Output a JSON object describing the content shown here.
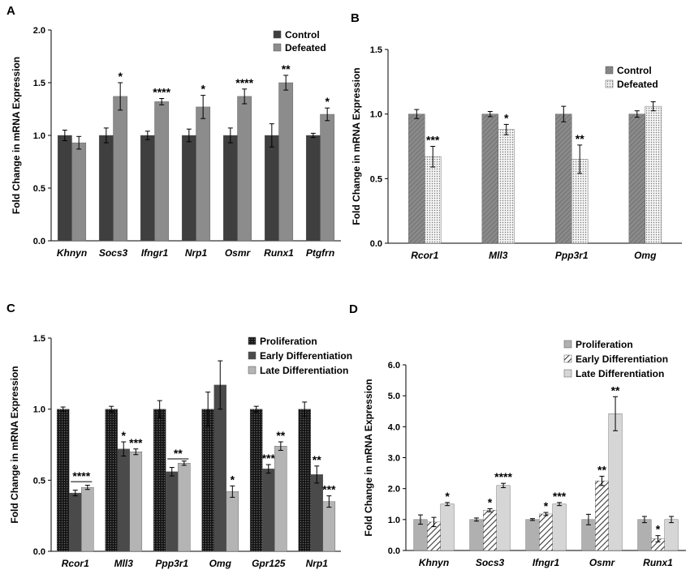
{
  "chart_data": [
    {
      "panel": "A",
      "type": "bar",
      "ylabel": "Fold Change in mRNA Expression",
      "ylim": [
        0,
        2.0
      ],
      "yticks": [
        "0.0",
        "0.5",
        "1.0",
        "1.5",
        "2.0"
      ],
      "yticks_values": [
        0,
        0.5,
        1.0,
        1.5,
        2.0
      ],
      "legend_position": "top-right",
      "categories": [
        "Khnyn",
        "Socs3",
        "Ifngr1",
        "Nrp1",
        "Osmr",
        "Runx1",
        "Ptgfrn"
      ],
      "series": [
        {
          "name": "Control",
          "color": "#3f3f3f",
          "pattern": "solid",
          "values": [
            1.0,
            1.0,
            1.0,
            1.0,
            1.0,
            1.0,
            1.0
          ],
          "errors": [
            0.05,
            0.07,
            0.04,
            0.06,
            0.07,
            0.11,
            0.02
          ],
          "sig": [
            "",
            "",
            "",
            "",
            "",
            "",
            ""
          ]
        },
        {
          "name": "Defeated",
          "color": "#8c8c8c",
          "pattern": "solid",
          "values": [
            0.93,
            1.37,
            1.32,
            1.27,
            1.37,
            1.5,
            1.2
          ],
          "errors": [
            0.06,
            0.13,
            0.03,
            0.11,
            0.07,
            0.07,
            0.06
          ],
          "sig": [
            "",
            "*",
            "****",
            "*",
            "****",
            "**",
            "*"
          ]
        }
      ],
      "brackets": []
    },
    {
      "panel": "B",
      "type": "bar",
      "ylabel": "Fold Change in mRNA Expression",
      "ylim": [
        0,
        1.5
      ],
      "yticks": [
        "0.0",
        "0.5",
        "1.0",
        "1.5"
      ],
      "yticks_values": [
        0,
        0.5,
        1.0,
        1.5
      ],
      "legend_position": "top-right",
      "categories": [
        "Rcor1",
        "Mll3",
        "Ppp3r1",
        "Omg"
      ],
      "series": [
        {
          "name": "Control",
          "color": "#8a8a8a",
          "pattern": "diag",
          "values": [
            1.0,
            1.0,
            1.0,
            1.0
          ],
          "errors": [
            0.035,
            0.02,
            0.06,
            0.025
          ],
          "sig": [
            "",
            "",
            "",
            ""
          ]
        },
        {
          "name": "Defeated",
          "color": "#f2f2f2",
          "pattern": "dots",
          "values": [
            0.67,
            0.88,
            0.65,
            1.06
          ],
          "errors": [
            0.08,
            0.04,
            0.11,
            0.035
          ],
          "sig": [
            "***",
            "*",
            "**",
            ""
          ]
        }
      ],
      "brackets": []
    },
    {
      "panel": "C",
      "type": "bar",
      "ylabel": "Fold Change in mRNA Expression",
      "ylim": [
        0,
        1.5
      ],
      "yticks": [
        "0.0",
        "0.5",
        "1.0",
        "1.5"
      ],
      "yticks_values": [
        0,
        0.5,
        1.0,
        1.5
      ],
      "legend_position": "top-right",
      "categories": [
        "Rcor1",
        "Mll3",
        "Ppp3r1",
        "Omg",
        "Gpr125",
        "Nrp1"
      ],
      "series": [
        {
          "name": "Proliferation",
          "color": "#1e1e1e",
          "pattern": "dots",
          "values": [
            1.0,
            1.0,
            1.0,
            1.0,
            1.0,
            1.0
          ],
          "errors": [
            0.015,
            0.02,
            0.06,
            0.12,
            0.02,
            0.05
          ],
          "sig": [
            "",
            "",
            "",
            "",
            "",
            ""
          ]
        },
        {
          "name": "Early Differentiation",
          "color": "#4a4a4a",
          "pattern": "solid",
          "values": [
            0.41,
            0.72,
            0.56,
            1.17,
            0.58,
            0.54
          ],
          "errors": [
            0.02,
            0.05,
            0.03,
            0.17,
            0.03,
            0.06
          ],
          "sig": [
            "",
            "*",
            "",
            "",
            "***",
            "**"
          ]
        },
        {
          "name": "Late Differentiation",
          "color": "#b4b4b4",
          "pattern": "solid",
          "values": [
            0.45,
            0.7,
            0.62,
            0.42,
            0.74,
            0.35
          ],
          "errors": [
            0.015,
            0.02,
            0.015,
            0.04,
            0.03,
            0.04
          ],
          "sig": [
            "",
            "***",
            "",
            "*",
            "**",
            "***"
          ]
        }
      ],
      "brackets": [
        {
          "category": 0,
          "from_series": 1,
          "to_series": 2,
          "label": "****",
          "level": 0.49
        },
        {
          "category": 2,
          "from_series": 1,
          "to_series": 2,
          "label": "**",
          "level": 0.65
        }
      ]
    },
    {
      "panel": "D",
      "type": "bar",
      "ylabel": "Fold Change in mRNA Expression",
      "ylim": [
        0,
        6.0
      ],
      "yticks": [
        "0.0",
        "1.0",
        "2.0",
        "3.0",
        "4.0",
        "5.0",
        "6.0"
      ],
      "yticks_values": [
        0,
        1,
        2,
        3,
        4,
        5,
        6
      ],
      "legend_position": "top-right",
      "categories": [
        "Khnyn",
        "Socs3",
        "Ifngr1",
        "Osmr",
        "Runx1"
      ],
      "series": [
        {
          "name": "Proliferation",
          "color": "#b0b0b0",
          "pattern": "solid",
          "values": [
            1.0,
            1.0,
            1.0,
            1.0,
            1.0
          ],
          "errors": [
            0.15,
            0.05,
            0.03,
            0.17,
            0.1
          ],
          "sig": [
            "",
            "",
            "",
            "",
            ""
          ]
        },
        {
          "name": "Early Differentiation",
          "color": "#7a7a7a",
          "pattern": "hatch",
          "values": [
            0.92,
            1.3,
            1.18,
            2.25,
            0.38
          ],
          "errors": [
            0.15,
            0.05,
            0.05,
            0.15,
            0.1
          ],
          "sig": [
            "",
            "*",
            "*",
            "**",
            "*"
          ]
        },
        {
          "name": "Late Differentiation",
          "color": "#d6d6d6",
          "pattern": "solid",
          "values": [
            1.5,
            2.1,
            1.5,
            4.42,
            1.0
          ],
          "errors": [
            0.05,
            0.07,
            0.05,
            0.55,
            0.1
          ],
          "sig": [
            "*",
            "****",
            "***",
            "**",
            ""
          ]
        }
      ],
      "brackets": []
    }
  ]
}
